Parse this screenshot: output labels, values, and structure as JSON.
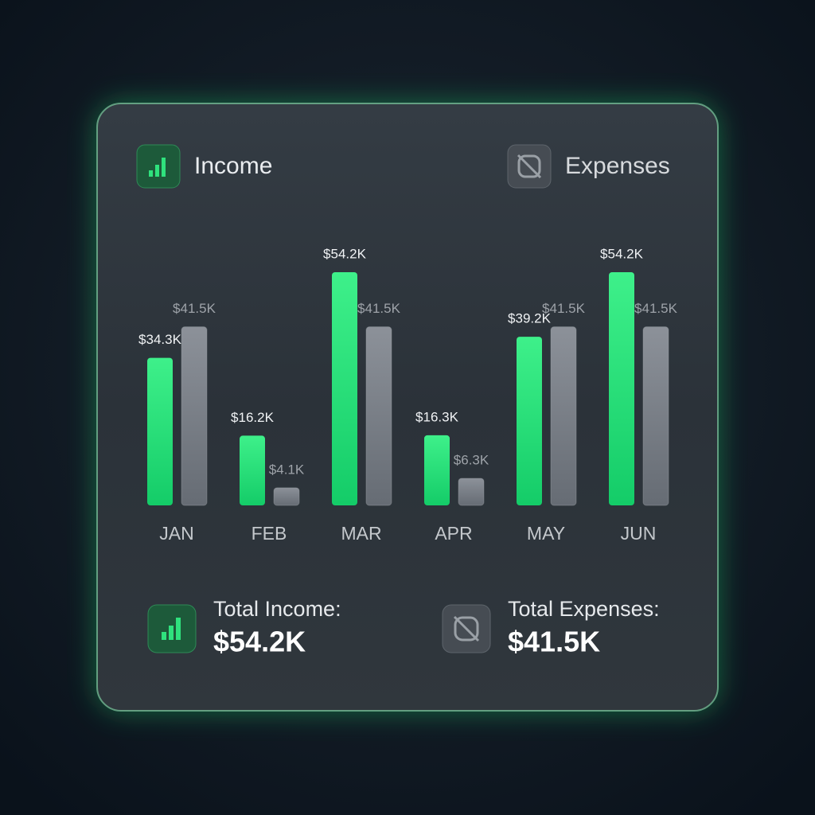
{
  "chart_data": {
    "type": "bar",
    "categories": [
      "JAN",
      "FEB",
      "MAR",
      "APR",
      "MAY",
      "JUN"
    ],
    "series": [
      {
        "name": "Income",
        "color": "#22e27a",
        "values": [
          34.3,
          16.2,
          54.2,
          16.3,
          39.2,
          54.2
        ],
        "value_labels": [
          "$34.3K",
          "$16.2K",
          "$54.2K",
          "$16.3K",
          "$39.2K",
          "$54.2K"
        ]
      },
      {
        "name": "Expenses",
        "color": "#7f858d",
        "values": [
          41.5,
          4.1,
          41.5,
          6.3,
          41.5,
          41.5
        ],
        "value_labels": [
          "$41.5K",
          "$4.1K",
          "$41.5K",
          "$6.3K",
          "$41.5K",
          "$41.5K"
        ]
      }
    ],
    "totals": [
      {
        "label": "Total Income:",
        "value": "$54.2K"
      },
      {
        "label": "Total Expenses:",
        "value": "$41.5K"
      }
    ]
  }
}
